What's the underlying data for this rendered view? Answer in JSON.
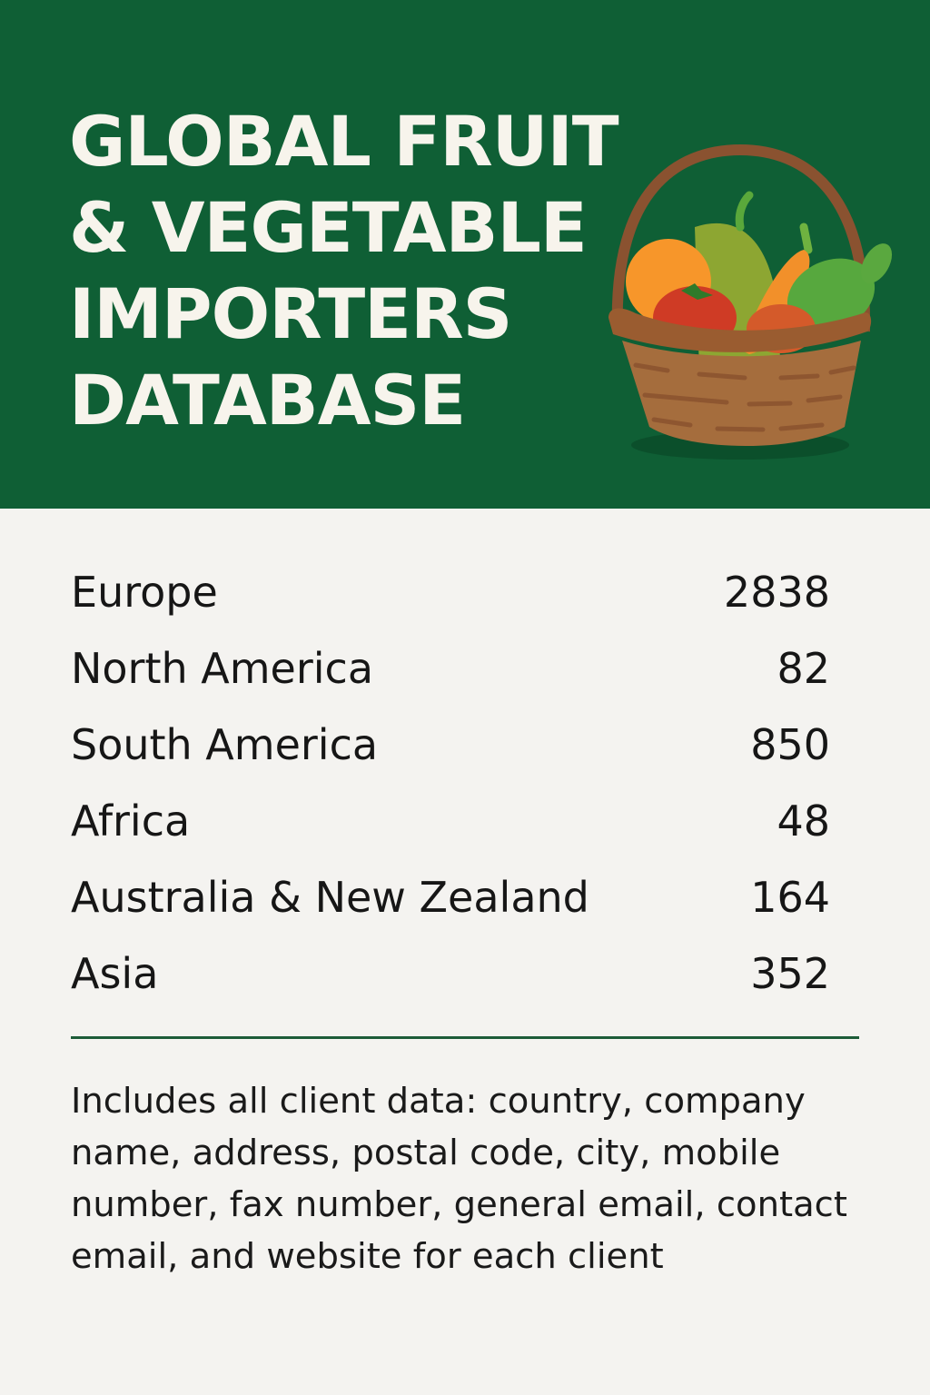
{
  "header": {
    "title_lines": [
      "GLOBAL FRUIT",
      "& VEGETABLE",
      "IMPORTERS",
      "DATABASE"
    ],
    "illustration": "basket-of-fruit-and-vegetables-icon",
    "background_color": "#0f5f35"
  },
  "regions": [
    {
      "name": "Europe",
      "count": "2838"
    },
    {
      "name": "North America",
      "count": "82"
    },
    {
      "name": "South America",
      "count": "850"
    },
    {
      "name": "Africa",
      "count": "48"
    },
    {
      "name": "Australia & New Zealand",
      "count": "164"
    },
    {
      "name": "Asia",
      "count": "352"
    }
  ],
  "description": "Includes all client data: country, company name, address, postal code, city, mobile number, fax number, general email, contact email, and website for each client"
}
